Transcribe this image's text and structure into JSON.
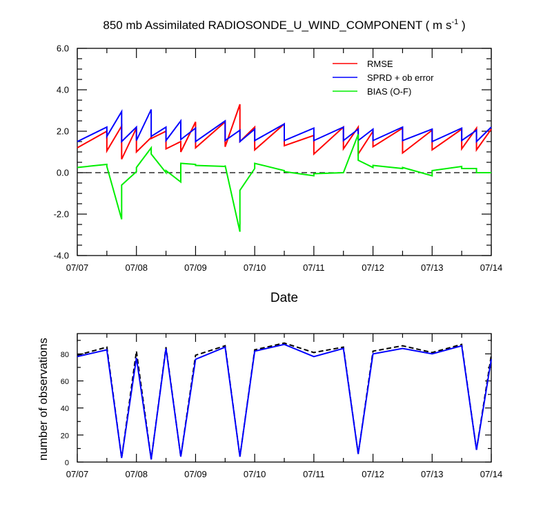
{
  "chart_data": [
    {
      "type": "line",
      "title_main": "850 mb Assimilated RADIOSONDE_U_WIND_COMPONENT ( m s",
      "title_sup": "-1",
      "title_end": " )",
      "xlabel": "Date",
      "ylabel": "",
      "xlim": [
        0,
        7
      ],
      "ylim": [
        -4,
        6
      ],
      "yticks": [
        "6.0",
        "4.0",
        "2.0",
        "0.0",
        "-2.0",
        "-4.0"
      ],
      "ytick_values": [
        6,
        4,
        2,
        0,
        -2,
        -4
      ],
      "xtick_labels": [
        "07/07",
        "07/08",
        "07/09",
        "07/10",
        "07/11",
        "07/12",
        "07/13",
        "07/14"
      ],
      "xtick_values": [
        0,
        1,
        2,
        3,
        4,
        5,
        6,
        7
      ],
      "reference_line": 0,
      "legend_position": "top-right",
      "series": [
        {
          "name": "RMSE",
          "color": "#ff0000",
          "x": [
            0,
            0.5,
            0.5,
            0.75,
            0.75,
            1,
            1,
            1.25,
            1.25,
            1.5,
            1.5,
            1.75,
            1.75,
            2,
            2,
            2.5,
            2.5,
            2.75,
            2.75,
            3,
            3,
            3.5,
            3.5,
            4,
            4,
            4.5,
            4.5,
            4.75,
            4.75,
            5,
            5,
            5.5,
            5.5,
            6,
            6,
            6.5,
            6.5,
            6.75,
            6.75,
            7
          ],
          "y": [
            1.2,
            2.0,
            1.05,
            2.25,
            0.65,
            2.15,
            1.0,
            1.7,
            1.65,
            2.0,
            1.15,
            1.5,
            1.0,
            2.45,
            1.2,
            2.45,
            1.25,
            3.3,
            1.5,
            2.2,
            1.1,
            2.35,
            1.3,
            1.8,
            0.9,
            2.2,
            1.15,
            2.2,
            0.9,
            2.0,
            1.25,
            2.15,
            0.95,
            2.05,
            1.1,
            2.1,
            1.15,
            2.15,
            1.1,
            2.1
          ]
        },
        {
          "name": "SPRD + ob error",
          "color": "#0000ff",
          "x": [
            0,
            0.5,
            0.5,
            0.75,
            0.75,
            1,
            1,
            1.25,
            1.25,
            1.5,
            1.5,
            1.75,
            1.75,
            2,
            2,
            2.5,
            2.5,
            2.75,
            2.75,
            3,
            3,
            3.5,
            3.5,
            4,
            4,
            4.5,
            4.5,
            4.75,
            4.75,
            5,
            5,
            5.5,
            5.5,
            6,
            6,
            6.5,
            6.5,
            6.75,
            6.75,
            7
          ],
          "y": [
            1.5,
            2.2,
            1.75,
            2.95,
            1.5,
            2.2,
            1.55,
            3.05,
            1.75,
            2.2,
            1.55,
            2.5,
            1.6,
            2.15,
            1.5,
            2.5,
            1.55,
            2.05,
            1.5,
            2.1,
            1.55,
            2.35,
            1.55,
            2.15,
            1.55,
            2.2,
            1.55,
            2.1,
            1.55,
            2.1,
            1.55,
            2.2,
            1.55,
            2.1,
            1.5,
            2.15,
            1.55,
            2.05,
            1.5,
            2.2
          ]
        },
        {
          "name": "BIAS (O-F)",
          "color": "#00ee00",
          "x": [
            0,
            0.5,
            0.5,
            0.75,
            0.75,
            1,
            1,
            1.25,
            1.25,
            1.5,
            1.5,
            1.75,
            1.75,
            2,
            2,
            2.5,
            2.5,
            2.75,
            2.75,
            3,
            3,
            3.5,
            3.5,
            4,
            4,
            4.5,
            4.5,
            4.75,
            4.75,
            5,
            5,
            5.5,
            5.5,
            6,
            6,
            6.5,
            6.5,
            6.75,
            6.75,
            7
          ],
          "y": [
            0.25,
            0.4,
            0.3,
            -2.25,
            -0.6,
            0.05,
            0.25,
            1.2,
            0.9,
            0.0,
            0.1,
            -0.45,
            0.45,
            0.4,
            0.35,
            0.3,
            0.35,
            -2.85,
            -0.85,
            0.2,
            0.45,
            0.1,
            0.05,
            -0.15,
            -0.05,
            0.0,
            0.0,
            1.85,
            0.6,
            0.25,
            0.35,
            0.2,
            0.25,
            -0.15,
            0.1,
            0.3,
            0.2,
            0.2,
            0.0,
            0.0
          ]
        }
      ]
    },
    {
      "type": "line",
      "title": "",
      "xlabel": "",
      "ylabel": "number of observations",
      "xlim": [
        0,
        7
      ],
      "ylim": [
        0,
        95
      ],
      "yticks": [
        "80",
        "60",
        "40",
        "20",
        "0"
      ],
      "ytick_values": [
        80,
        60,
        40,
        20,
        0
      ],
      "xtick_labels": [
        "07/07",
        "07/08",
        "07/09",
        "07/10",
        "07/11",
        "07/12",
        "07/13",
        "07/14"
      ],
      "xtick_values": [
        0,
        1,
        2,
        3,
        4,
        5,
        6,
        7
      ],
      "series": [
        {
          "style": "dashed",
          "color": "#000000",
          "x": [
            0,
            0.5,
            0.75,
            1,
            1.25,
            1.5,
            1.75,
            2,
            2.5,
            2.75,
            3,
            3.5,
            4,
            4.5,
            4.75,
            5,
            5.5,
            6,
            6.5,
            6.75,
            7
          ],
          "y": [
            79,
            85,
            3,
            82,
            2,
            85,
            4,
            79,
            86,
            4,
            83,
            88,
            81,
            85,
            6,
            82,
            86,
            81,
            87,
            9,
            79
          ]
        },
        {
          "style": "solid",
          "color": "#0000ff",
          "x": [
            0,
            0.5,
            0.75,
            1,
            1.25,
            1.5,
            1.75,
            2,
            2.5,
            2.75,
            3,
            3.5,
            4,
            4.5,
            4.75,
            5,
            5.5,
            6,
            6.5,
            6.75,
            7
          ],
          "y": [
            78,
            83,
            3,
            77,
            2,
            84,
            4,
            76,
            85,
            4,
            82,
            87,
            78,
            84,
            6,
            80,
            84,
            80,
            86,
            9,
            76
          ]
        }
      ]
    }
  ]
}
